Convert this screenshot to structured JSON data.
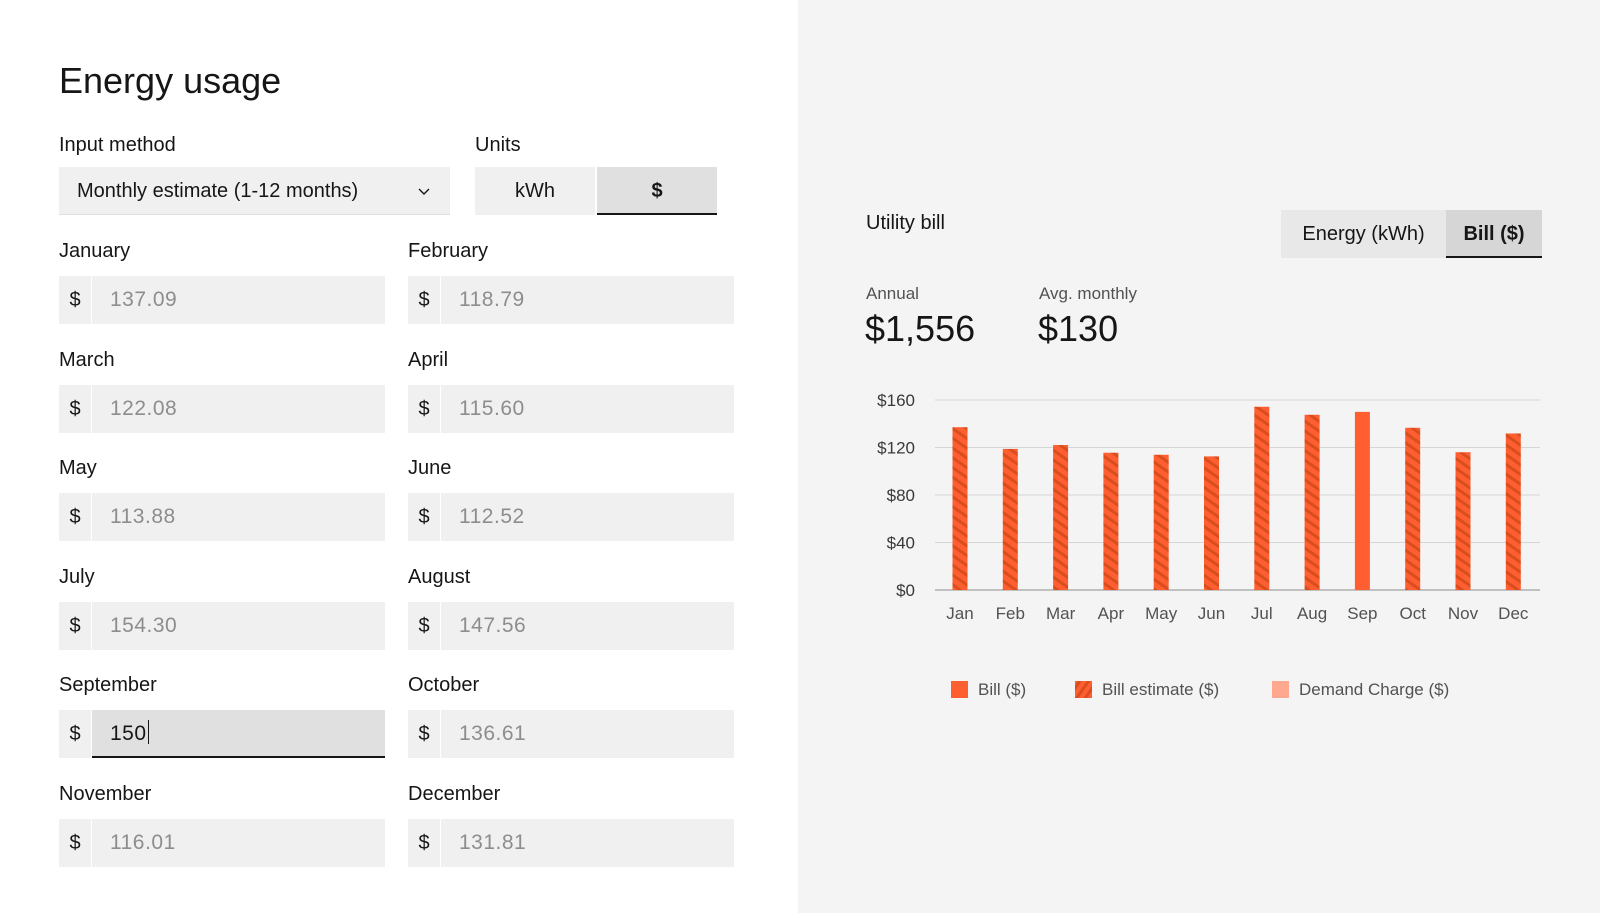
{
  "page": {
    "title": "Energy usage"
  },
  "input_method": {
    "label": "Input method",
    "value": "Monthly estimate (1-12 months)"
  },
  "units": {
    "label": "Units",
    "options": [
      "kWh",
      "$"
    ],
    "selected": "$"
  },
  "months": [
    {
      "label": "January",
      "currency": "$",
      "value": "137.09"
    },
    {
      "label": "February",
      "currency": "$",
      "value": "118.79"
    },
    {
      "label": "March",
      "currency": "$",
      "value": "122.08"
    },
    {
      "label": "April",
      "currency": "$",
      "value": "115.60"
    },
    {
      "label": "May",
      "currency": "$",
      "value": "113.88"
    },
    {
      "label": "June",
      "currency": "$",
      "value": "112.52"
    },
    {
      "label": "July",
      "currency": "$",
      "value": "154.30"
    },
    {
      "label": "August",
      "currency": "$",
      "value": "147.56"
    },
    {
      "label": "September",
      "currency": "$",
      "value": "150"
    },
    {
      "label": "October",
      "currency": "$",
      "value": "136.61"
    },
    {
      "label": "November",
      "currency": "$",
      "value": "116.01"
    },
    {
      "label": "December",
      "currency": "$",
      "value": "131.81"
    }
  ],
  "utility_bill": {
    "title": "Utility bill",
    "tabs": [
      "Energy (kWh)",
      "Bill ($)"
    ],
    "selected_tab": "Bill ($)",
    "annual_label": "Annual",
    "annual_value": "$1,556",
    "avg_label": "Avg. monthly",
    "avg_value": "$130"
  },
  "chart_data": {
    "type": "bar",
    "categories": [
      "Jan",
      "Feb",
      "Mar",
      "Apr",
      "May",
      "Jun",
      "Jul",
      "Aug",
      "Sep",
      "Oct",
      "Nov",
      "Dec"
    ],
    "values": [
      137.09,
      118.79,
      122.08,
      115.6,
      113.88,
      112.52,
      154.3,
      147.56,
      150,
      136.61,
      116.01,
      131.81
    ],
    "bar_kind": [
      "estimate",
      "estimate",
      "estimate",
      "estimate",
      "estimate",
      "estimate",
      "estimate",
      "estimate",
      "bill",
      "estimate",
      "estimate",
      "estimate"
    ],
    "ylim": [
      0,
      160
    ],
    "yticks": [
      0,
      40,
      80,
      120,
      160
    ],
    "ytick_labels": [
      "$0",
      "$40",
      "$80",
      "$120",
      "$160"
    ],
    "grid": true,
    "legend_position": "bottom",
    "legend": [
      {
        "name": "Bill ($)",
        "color": "#ff5f30",
        "style": "solid"
      },
      {
        "name": "Bill estimate ($)",
        "color": "#ff5f30",
        "style": "hatched"
      },
      {
        "name": "Demand Charge ($)",
        "color": "#ffa890",
        "style": "solid"
      }
    ]
  },
  "colors": {
    "accent": "#ff5f30",
    "accent_dark": "#d94d1e",
    "demand": "#ffa890"
  }
}
